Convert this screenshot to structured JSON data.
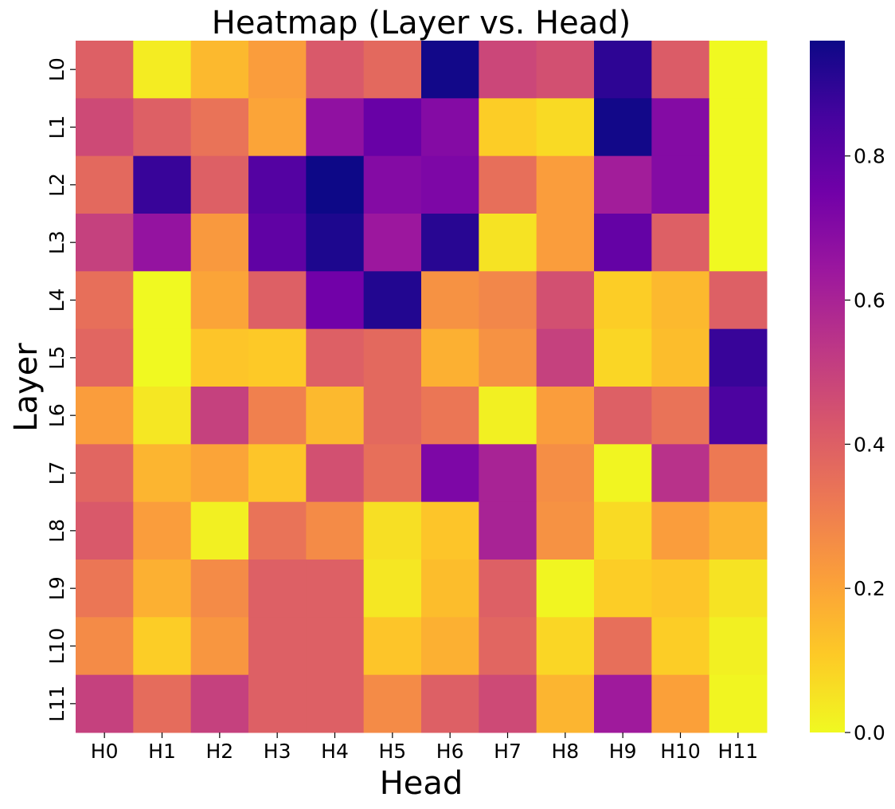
{
  "chart_data": {
    "type": "heatmap",
    "title": "Heatmap (Layer vs. Head)",
    "xlabel": "Head",
    "ylabel": "Layer",
    "x_categories": [
      "H0",
      "H1",
      "H2",
      "H3",
      "H4",
      "H5",
      "H6",
      "H7",
      "H8",
      "H9",
      "H10",
      "H11"
    ],
    "y_categories": [
      "L0",
      "L1",
      "L2",
      "L3",
      "L4",
      "L5",
      "L6",
      "L7",
      "L8",
      "L9",
      "L10",
      "L11"
    ],
    "values": [
      [
        0.4,
        0.03,
        0.15,
        0.22,
        0.42,
        0.37,
        0.95,
        0.48,
        0.45,
        0.9,
        0.41,
        0.0
      ],
      [
        0.47,
        0.4,
        0.34,
        0.2,
        0.67,
        0.77,
        0.7,
        0.1,
        0.07,
        0.95,
        0.7,
        0.0
      ],
      [
        0.37,
        0.88,
        0.4,
        0.82,
        0.97,
        0.7,
        0.72,
        0.35,
        0.22,
        0.62,
        0.7,
        0.0
      ],
      [
        0.5,
        0.66,
        0.23,
        0.79,
        0.93,
        0.64,
        0.91,
        0.05,
        0.22,
        0.78,
        0.4,
        0.0
      ],
      [
        0.35,
        0.0,
        0.2,
        0.4,
        0.75,
        0.92,
        0.25,
        0.28,
        0.45,
        0.1,
        0.15,
        0.4
      ],
      [
        0.38,
        0.0,
        0.12,
        0.11,
        0.4,
        0.37,
        0.17,
        0.25,
        0.5,
        0.08,
        0.14,
        0.88
      ],
      [
        0.22,
        0.04,
        0.5,
        0.3,
        0.15,
        0.37,
        0.33,
        0.02,
        0.22,
        0.4,
        0.34,
        0.84
      ],
      [
        0.38,
        0.16,
        0.2,
        0.12,
        0.45,
        0.35,
        0.72,
        0.6,
        0.26,
        0.01,
        0.55,
        0.32
      ],
      [
        0.42,
        0.22,
        0.02,
        0.34,
        0.27,
        0.06,
        0.12,
        0.6,
        0.25,
        0.07,
        0.22,
        0.16
      ],
      [
        0.33,
        0.17,
        0.27,
        0.4,
        0.4,
        0.04,
        0.14,
        0.4,
        0.01,
        0.1,
        0.12,
        0.05
      ],
      [
        0.27,
        0.1,
        0.24,
        0.4,
        0.4,
        0.12,
        0.17,
        0.38,
        0.08,
        0.35,
        0.1,
        0.02
      ],
      [
        0.5,
        0.36,
        0.5,
        0.4,
        0.4,
        0.27,
        0.4,
        0.47,
        0.16,
        0.63,
        0.21,
        0.01
      ]
    ],
    "colorbar": {
      "colormap": "plasma (reversed)",
      "range": [
        0.0,
        0.96
      ],
      "ticks": [
        0.0,
        0.2,
        0.4,
        0.6,
        0.8
      ],
      "tick_labels": [
        "0.0",
        "0.2",
        "0.4",
        "0.6",
        "0.8"
      ],
      "colors": [
        "#f0f921",
        "#fdca26",
        "#fb9f3a",
        "#ed7953",
        "#d8576b",
        "#bd3786",
        "#9c179e",
        "#7201a8",
        "#46039f",
        "#0d0887"
      ]
    }
  }
}
